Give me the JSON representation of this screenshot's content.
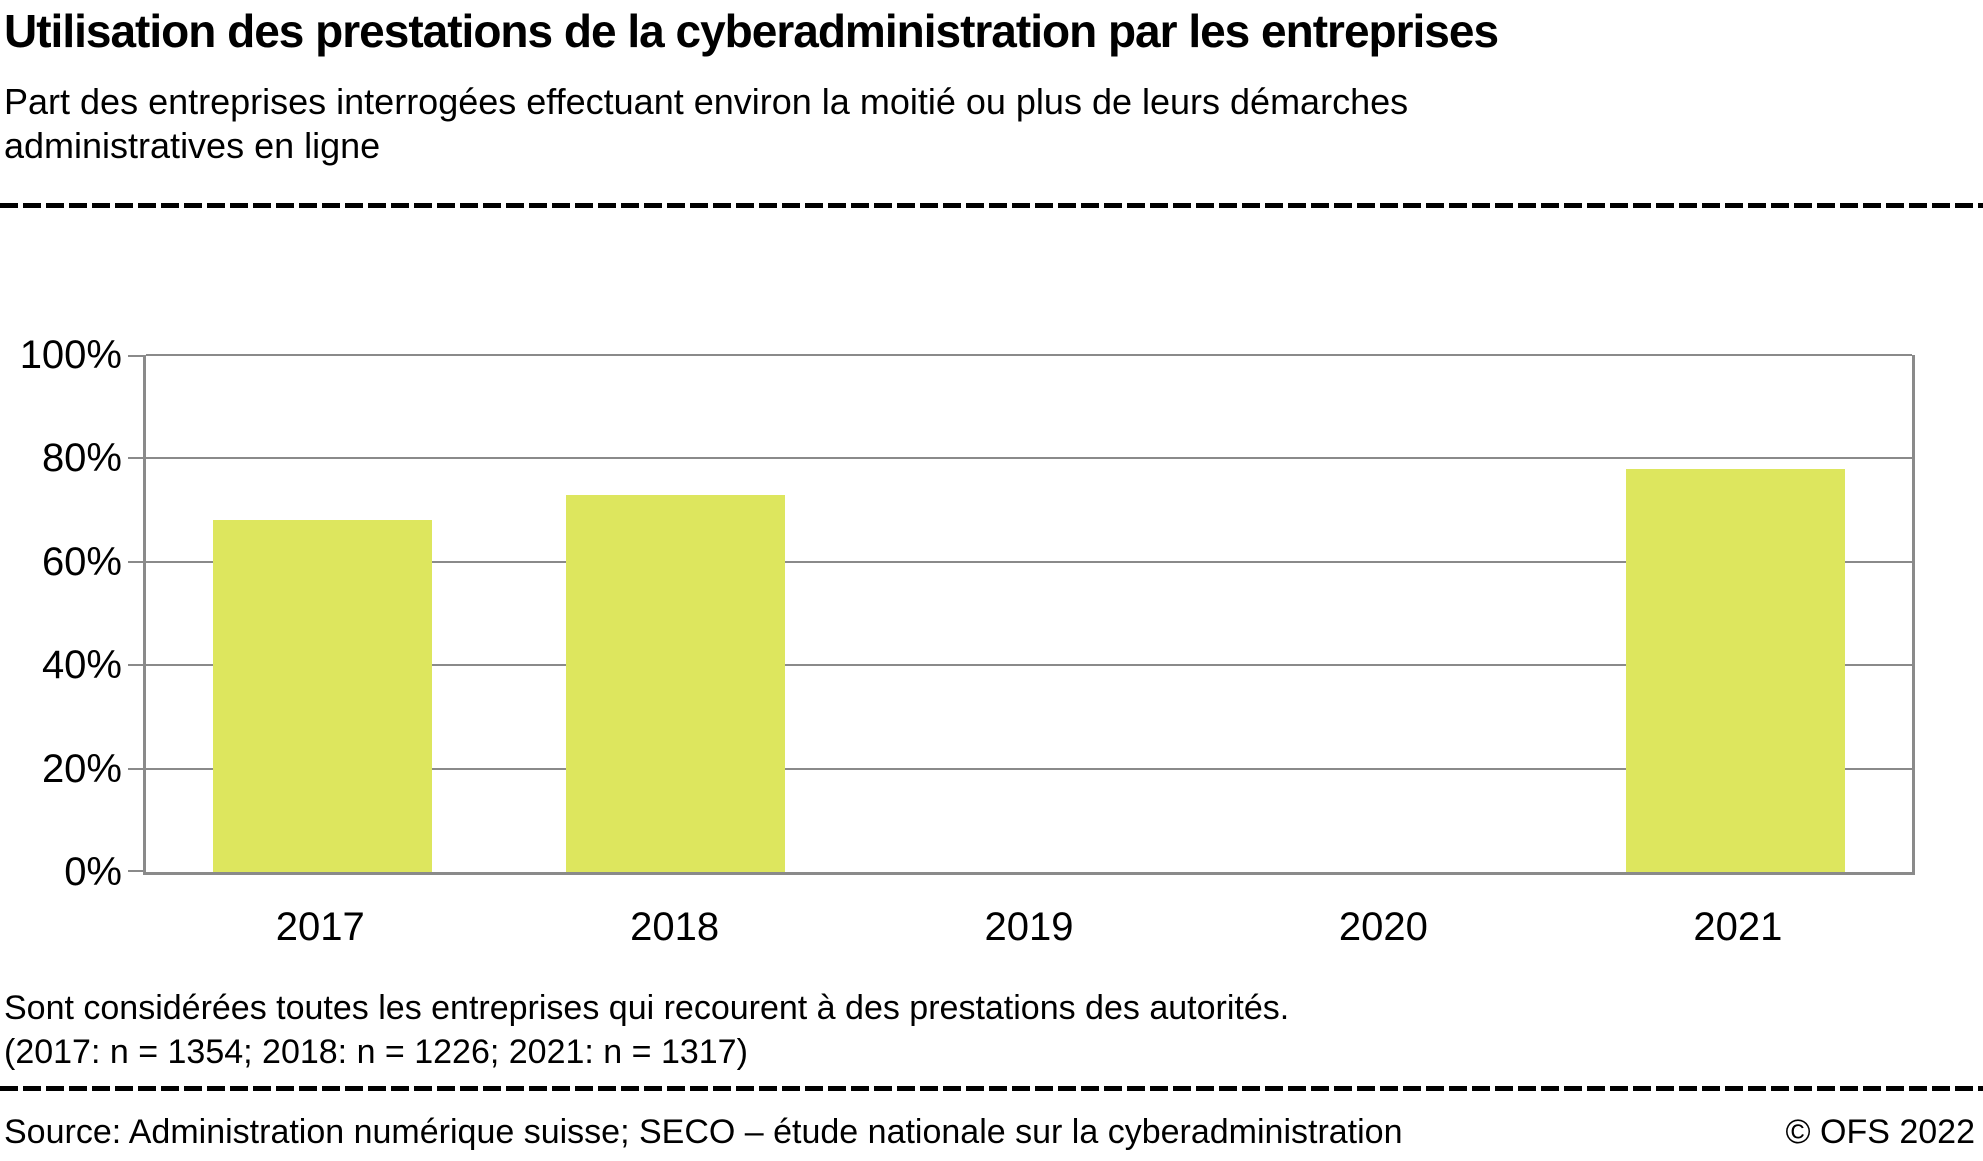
{
  "chart_data": {
    "type": "bar",
    "title": "Utilisation des prestations de la cyberadministration par les entreprises",
    "subtitle": "Part des entreprises interrogées effectuant environ la moitié ou plus de leurs démarches administratives en ligne",
    "categories": [
      "2017",
      "2018",
      "2019",
      "2020",
      "2021"
    ],
    "values": [
      68,
      73,
      null,
      null,
      78
    ],
    "unit": "%",
    "xlabel": "",
    "ylabel": "",
    "ylim": [
      0,
      100
    ],
    "yticks": [
      0,
      20,
      40,
      60,
      80,
      100
    ],
    "ytick_labels": [
      "0%",
      "20%",
      "40%",
      "60%",
      "80%",
      "100%"
    ],
    "grid": true,
    "legend_position": "none",
    "bar_color": "#dde65e",
    "grid_color": "#8a8a8a"
  },
  "footnotes": [
    "Sont considérées toutes les entreprises qui recourent à des prestations des autorités.",
    "(2017: n = 1354; 2018: n = 1226; 2021: n = 1317)"
  ],
  "footer": {
    "source": "Source: Administration numérique suisse; SECO – étude nationale sur la cyberadministration",
    "copyright": "© OFS 2022"
  }
}
